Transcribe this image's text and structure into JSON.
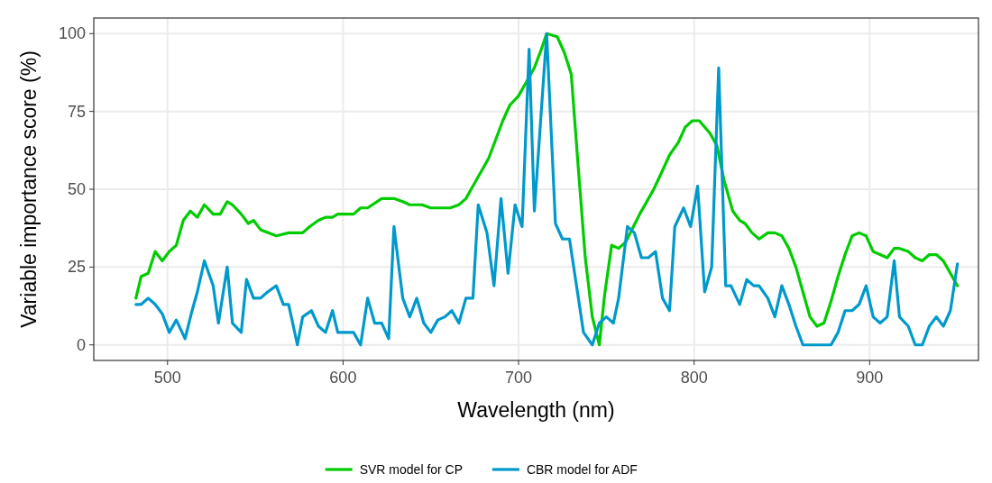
{
  "chart_data": {
    "type": "line",
    "xlabel": "Wavelength (nm)",
    "ylabel": "Variable importance score (%)",
    "xlim": [
      458,
      962
    ],
    "ylim": [
      -5,
      105
    ],
    "xticks": [
      500,
      600,
      700,
      800,
      900
    ],
    "yticks": [
      0,
      25,
      50,
      75,
      100
    ],
    "grid": true,
    "legend": "bottom",
    "line_style": "solid",
    "marker": "none",
    "series": [
      {
        "name": "SVR model for CP",
        "color": "#00cc00",
        "x": [
          482,
          485,
          489,
          493,
          497,
          501,
          505,
          509,
          513,
          517,
          521,
          526,
          530,
          534,
          537,
          542,
          546,
          549,
          553,
          562,
          569,
          577,
          581,
          586,
          590,
          594,
          597,
          606,
          610,
          614,
          622,
          626,
          629,
          634,
          638,
          645,
          650,
          661,
          666,
          670,
          674,
          678,
          683,
          687,
          691,
          695,
          700,
          704,
          709,
          713,
          716,
          722,
          726,
          730,
          734,
          738,
          742,
          746,
          749,
          753,
          757,
          761,
          769,
          777,
          782,
          786,
          791,
          795,
          799,
          803,
          806,
          809,
          813,
          817,
          822,
          826,
          829,
          833,
          837,
          842,
          846,
          850,
          854,
          858,
          862,
          866,
          870,
          874,
          878,
          882,
          886,
          890,
          894,
          898,
          902,
          906,
          910,
          914,
          917,
          922,
          926,
          930,
          934,
          938,
          942,
          946,
          950
        ],
        "values": [
          15,
          22,
          23,
          30,
          27,
          30,
          32,
          40,
          43,
          41,
          45,
          42,
          42,
          46,
          45,
          42,
          39,
          40,
          37,
          35,
          36,
          36,
          38,
          40,
          41,
          41,
          42,
          42,
          44,
          44,
          47,
          47,
          47,
          46,
          45,
          45,
          44,
          44,
          45,
          47,
          51,
          55,
          60,
          66,
          72,
          77,
          80,
          84,
          89,
          95,
          100,
          99,
          94,
          87,
          57,
          28,
          9,
          0,
          16,
          32,
          31,
          33,
          42,
          50,
          56,
          61,
          65,
          70,
          72,
          72,
          70,
          68,
          64,
          53,
          43,
          40,
          39,
          36,
          34,
          36,
          36,
          35,
          31,
          25,
          17,
          9,
          6,
          7,
          14,
          22,
          29,
          35,
          36,
          35,
          30,
          29,
          28,
          31,
          31,
          30,
          28,
          27,
          29,
          29,
          27,
          23,
          19
        ]
      },
      {
        "name": "CBR model for ADF",
        "color": "#0099cc",
        "x": [
          482,
          485,
          489,
          493,
          497,
          501,
          505,
          510,
          514,
          517,
          521,
          526,
          529,
          534,
          537,
          542,
          545,
          549,
          553,
          557,
          562,
          566,
          569,
          574,
          577,
          582,
          586,
          590,
          594,
          597,
          606,
          610,
          614,
          618,
          622,
          626,
          629,
          634,
          638,
          642,
          646,
          650,
          654,
          658,
          662,
          666,
          670,
          674,
          677,
          682,
          686,
          690,
          694,
          698,
          702,
          706,
          709,
          716,
          721,
          725,
          729,
          733,
          737,
          742,
          746,
          750,
          754,
          757,
          762,
          766,
          770,
          774,
          778,
          782,
          786,
          789,
          794,
          798,
          802,
          806,
          810,
          814,
          818,
          821,
          826,
          830,
          834,
          837,
          842,
          846,
          850,
          854,
          858,
          862,
          866,
          870,
          874,
          878,
          882,
          886,
          890,
          894,
          898,
          902,
          906,
          910,
          914,
          917,
          922,
          926,
          930,
          934,
          938,
          942,
          946,
          950
        ],
        "values": [
          13,
          13,
          15,
          13,
          10,
          4,
          8,
          2,
          11,
          17,
          27,
          19,
          7,
          25,
          7,
          4,
          21,
          15,
          15,
          17,
          19,
          13,
          13,
          0,
          9,
          11,
          6,
          4,
          11,
          4,
          4,
          0,
          15,
          7,
          7,
          2,
          38,
          15,
          9,
          15,
          7,
          4,
          8,
          9,
          11,
          7,
          15,
          15,
          45,
          36,
          19,
          47,
          23,
          45,
          38,
          95,
          43,
          100,
          39,
          34,
          34,
          19,
          4,
          0,
          7,
          9,
          7,
          15,
          38,
          36,
          28,
          28,
          30,
          15,
          11,
          38,
          44,
          38,
          51,
          17,
          25,
          89,
          19,
          19,
          13,
          21,
          19,
          19,
          15,
          9,
          19,
          13,
          6,
          0,
          0,
          0,
          0,
          0,
          4,
          11,
          11,
          13,
          19,
          9,
          7,
          9,
          27,
          9,
          6,
          0,
          0,
          6,
          9,
          6,
          11,
          26
        ]
      }
    ]
  }
}
